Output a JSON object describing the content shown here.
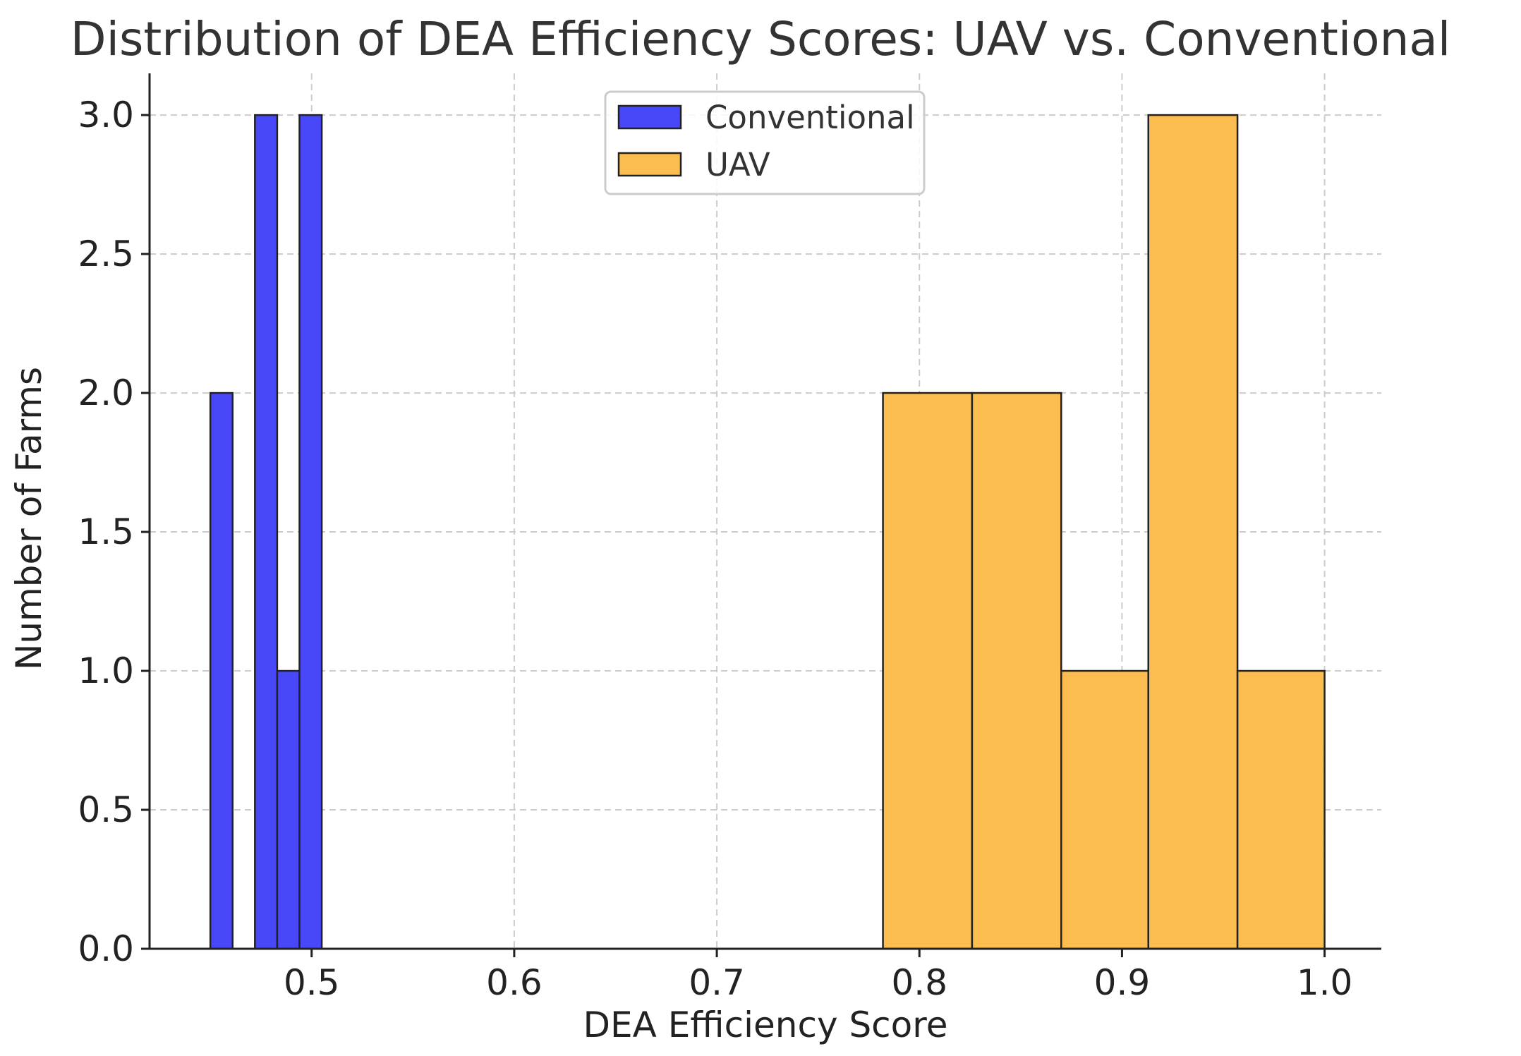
{
  "chart_data": {
    "type": "histogram",
    "title": "Distribution of DEA Efficiency Scores: UAV vs. Conventional",
    "xlabel": "DEA Efficiency Score",
    "ylabel": "Number of Farms",
    "xlim": [
      0.42,
      1.028
    ],
    "ylim": [
      0,
      3.15
    ],
    "xticks": [
      0.5,
      0.6,
      0.7,
      0.8,
      0.9,
      1.0
    ],
    "xtick_labels": [
      "0.5",
      "0.6",
      "0.7",
      "0.8",
      "0.9",
      "1.0"
    ],
    "yticks": [
      0.0,
      0.5,
      1.0,
      1.5,
      2.0,
      2.5,
      3.0
    ],
    "ytick_labels": [
      "0.0",
      "0.5",
      "1.0",
      "1.5",
      "2.0",
      "2.5",
      "3.0"
    ],
    "grid": true,
    "legend_position": "top-center",
    "series": [
      {
        "name": "Conventional",
        "color": "#4848F8",
        "bins": [
          {
            "start": 0.45,
            "end": 0.461,
            "count": 2
          },
          {
            "start": 0.461,
            "end": 0.472,
            "count": 0
          },
          {
            "start": 0.472,
            "end": 0.483,
            "count": 3
          },
          {
            "start": 0.483,
            "end": 0.494,
            "count": 1
          },
          {
            "start": 0.494,
            "end": 0.505,
            "count": 3
          }
        ]
      },
      {
        "name": "UAV",
        "color": "#FBBD4F",
        "bins": [
          {
            "start": 0.782,
            "end": 0.826,
            "count": 2
          },
          {
            "start": 0.826,
            "end": 0.87,
            "count": 2
          },
          {
            "start": 0.87,
            "end": 0.913,
            "count": 1
          },
          {
            "start": 0.913,
            "end": 0.957,
            "count": 3
          },
          {
            "start": 0.957,
            "end": 1.0,
            "count": 1
          }
        ]
      }
    ]
  }
}
